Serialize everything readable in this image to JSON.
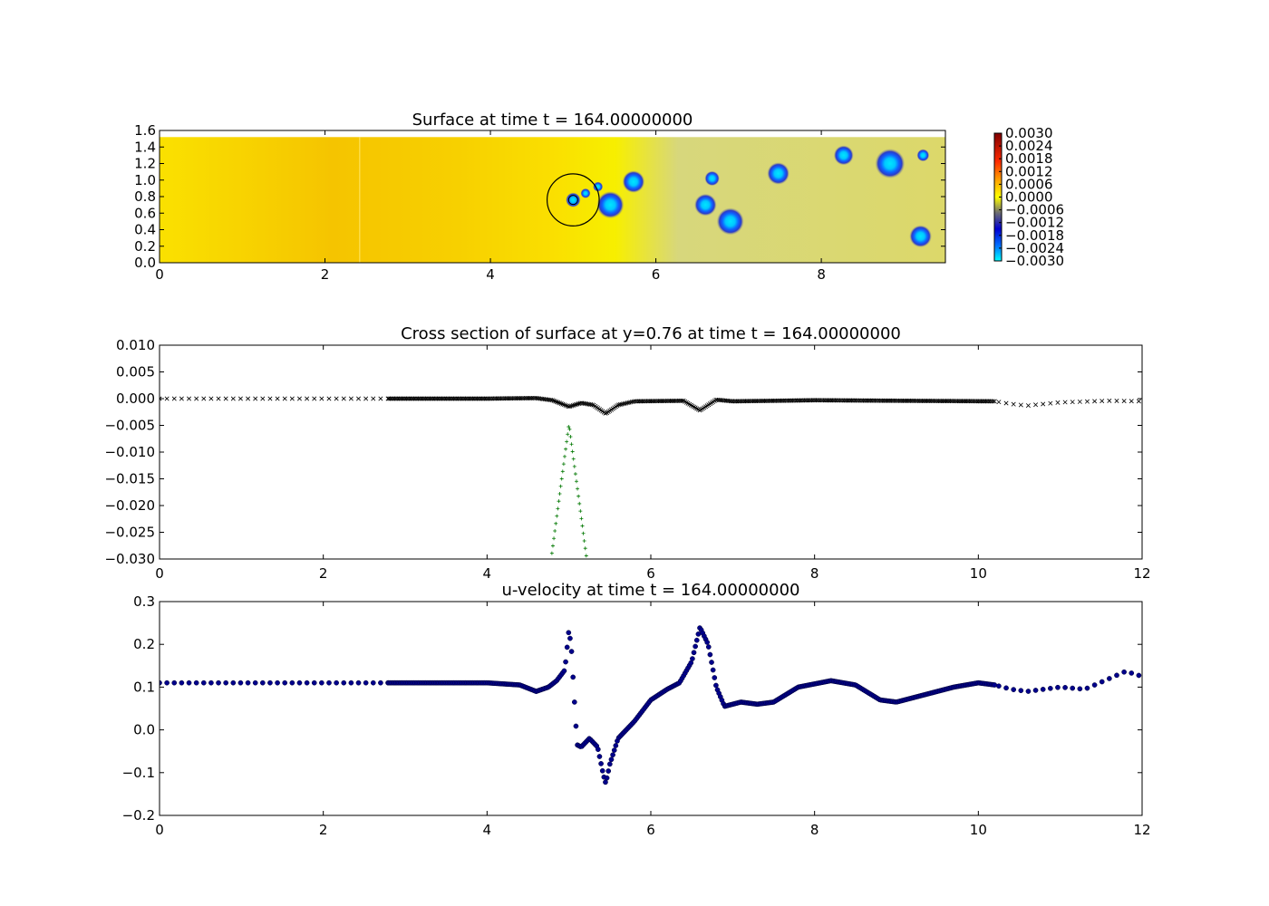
{
  "chart_data": [
    {
      "type": "heatmap",
      "title": "Surface at time t =   164.00000000",
      "xlim": [
        0,
        9.5
      ],
      "ylim": [
        0,
        1.6
      ],
      "x_ticks": [
        "0",
        "2",
        "4",
        "6",
        "8"
      ],
      "y_ticks": [
        "0.0",
        "0.2",
        "0.4",
        "0.6",
        "0.8",
        "1.0",
        "1.2",
        "1.4",
        "1.6"
      ],
      "domain_y_max": 1.52,
      "colorbar": {
        "range": [
          -0.003,
          0.003
        ],
        "ticks": [
          "0.0030",
          "0.0024",
          "0.0018",
          "0.0012",
          "0.0006",
          "0.0000",
          "−0.0006",
          "−0.0012",
          "−0.0018",
          "−0.0024",
          "−0.0030"
        ]
      },
      "ring": {
        "x": 5.0,
        "y": 0.76,
        "r": 0.35
      },
      "depressions": [
        {
          "x": 5.0,
          "y": 0.76,
          "r": 0.06
        },
        {
          "x": 5.15,
          "y": 0.84,
          "r": 0.04
        },
        {
          "x": 5.3,
          "y": 0.92,
          "r": 0.04
        },
        {
          "x": 5.45,
          "y": 0.7,
          "r": 0.11
        },
        {
          "x": 5.73,
          "y": 0.98,
          "r": 0.09
        },
        {
          "x": 6.6,
          "y": 0.7,
          "r": 0.09
        },
        {
          "x": 6.68,
          "y": 1.02,
          "r": 0.06
        },
        {
          "x": 6.9,
          "y": 0.5,
          "r": 0.11
        },
        {
          "x": 7.48,
          "y": 1.08,
          "r": 0.09
        },
        {
          "x": 8.27,
          "y": 1.3,
          "r": 0.08
        },
        {
          "x": 8.83,
          "y": 1.2,
          "r": 0.12
        },
        {
          "x": 9.2,
          "y": 0.32,
          "r": 0.09
        },
        {
          "x": 9.23,
          "y": 1.3,
          "r": 0.05
        }
      ]
    },
    {
      "type": "scatter",
      "title": "Cross section of surface at y=0.76 at time t =   164.00000000",
      "xlim": [
        0,
        12
      ],
      "ylim": [
        -0.03,
        0.01
      ],
      "x_ticks": [
        "0",
        "2",
        "4",
        "6",
        "8",
        "10",
        "12"
      ],
      "y_ticks": [
        "0.010",
        "0.005",
        "0.000",
        "−0.005",
        "−0.010",
        "−0.015",
        "−0.020",
        "−0.025",
        "−0.030"
      ],
      "surface_profile": [
        [
          0,
          0.0
        ],
        [
          2.8,
          0.0
        ],
        [
          4.0,
          0.0
        ],
        [
          4.6,
          0.0001
        ],
        [
          4.8,
          -0.0003
        ],
        [
          5.0,
          -0.0015
        ],
        [
          5.15,
          -0.0008
        ],
        [
          5.3,
          -0.0012
        ],
        [
          5.45,
          -0.0028
        ],
        [
          5.6,
          -0.0012
        ],
        [
          5.8,
          -0.0005
        ],
        [
          6.4,
          -0.0004
        ],
        [
          6.6,
          -0.0022
        ],
        [
          6.8,
          -0.0002
        ],
        [
          7.0,
          -0.0005
        ],
        [
          8.0,
          -0.0003
        ],
        [
          10.2,
          -0.0005
        ],
        [
          10.4,
          -0.001
        ],
        [
          10.6,
          -0.0013
        ],
        [
          11.0,
          -0.0007
        ],
        [
          11.6,
          -0.0004
        ],
        [
          12.0,
          -0.0005
        ]
      ],
      "bed_profile": {
        "center": 5.0,
        "peak": -0.0048,
        "slope_per_unit": 0.116
      }
    },
    {
      "type": "scatter",
      "title": "u-velocity at time t =   164.00000000",
      "xlim": [
        0,
        12
      ],
      "ylim": [
        -0.2,
        0.3
      ],
      "x_ticks": [
        "0",
        "2",
        "4",
        "6",
        "8",
        "10",
        "12"
      ],
      "y_ticks": [
        "0.3",
        "0.2",
        "0.1",
        "0.0",
        "−0.1",
        "−0.2"
      ],
      "series": [
        {
          "color": "#00008b",
          "points": [
            [
              0,
              0.11
            ],
            [
              2.8,
              0.11
            ],
            [
              4.0,
              0.11
            ],
            [
              4.4,
              0.105
            ],
            [
              4.6,
              0.09
            ],
            [
              4.75,
              0.1
            ],
            [
              4.85,
              0.115
            ],
            [
              4.95,
              0.14
            ],
            [
              5.0,
              0.235
            ],
            [
              5.03,
              0.19
            ],
            [
              5.06,
              0.09
            ],
            [
              5.1,
              -0.035
            ],
            [
              5.15,
              -0.04
            ],
            [
              5.25,
              -0.02
            ],
            [
              5.35,
              -0.04
            ],
            [
              5.42,
              -0.105
            ],
            [
              5.45,
              -0.125
            ],
            [
              5.5,
              -0.08
            ],
            [
              5.6,
              -0.02
            ],
            [
              5.8,
              0.02
            ],
            [
              6.0,
              0.07
            ],
            [
              6.2,
              0.095
            ],
            [
              6.35,
              0.11
            ],
            [
              6.5,
              0.16
            ],
            [
              6.6,
              0.24
            ],
            [
              6.7,
              0.2
            ],
            [
              6.8,
              0.1
            ],
            [
              6.9,
              0.055
            ],
            [
              7.1,
              0.065
            ],
            [
              7.3,
              0.06
            ],
            [
              7.5,
              0.065
            ],
            [
              7.8,
              0.1
            ],
            [
              8.2,
              0.115
            ],
            [
              8.5,
              0.105
            ],
            [
              8.8,
              0.07
            ],
            [
              9.0,
              0.065
            ],
            [
              9.3,
              0.08
            ],
            [
              9.7,
              0.1
            ],
            [
              10.0,
              0.11
            ],
            [
              10.2,
              0.105
            ],
            [
              10.4,
              0.095
            ],
            [
              10.6,
              0.09
            ],
            [
              11.0,
              0.1
            ],
            [
              11.3,
              0.095
            ],
            [
              11.6,
              0.12
            ],
            [
              11.8,
              0.137
            ],
            [
              12.0,
              0.125
            ]
          ]
        }
      ]
    }
  ]
}
